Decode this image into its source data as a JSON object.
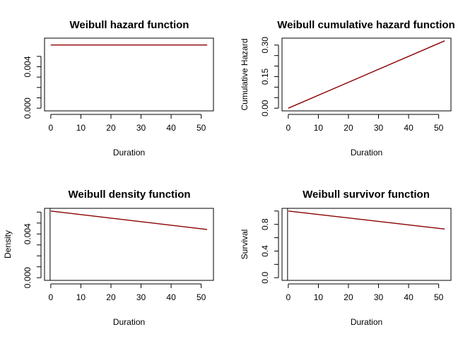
{
  "chart_data": [
    {
      "type": "line",
      "title": "Weibull hazard function",
      "xlabel": "Duration",
      "ylabel": "",
      "xlim": [
        0,
        52
      ],
      "ylim": [
        0,
        0.0065
      ],
      "xticks": [
        "0",
        "10",
        "20",
        "30",
        "40",
        "50"
      ],
      "yticks": [
        "0.000",
        "0.004"
      ],
      "yminor": [
        0.001,
        0.002,
        0.003,
        0.005
      ],
      "vline_at_zero": false,
      "series": [
        {
          "color": "#8B0000",
          "x": [
            0,
            52
          ],
          "y": [
            0.0061,
            0.0061
          ]
        }
      ]
    },
    {
      "type": "line",
      "title": "Weibull cumulative hazard function",
      "xlabel": "Duration",
      "ylabel": "Cumulative Hazard",
      "xlim": [
        0,
        52
      ],
      "ylim": [
        0,
        0.32
      ],
      "xticks": [
        "0",
        "10",
        "20",
        "30",
        "40",
        "50"
      ],
      "yticks": [
        "0.00",
        "0.15",
        "0.30"
      ],
      "yminor": [
        0.05,
        0.1,
        0.2,
        0.25
      ],
      "vline_at_zero": false,
      "series": [
        {
          "color": "#8B0000",
          "x": [
            0,
            52
          ],
          "y": [
            0,
            0.32
          ]
        }
      ]
    },
    {
      "type": "line",
      "title": "Weibull density function",
      "xlabel": "Duration",
      "ylabel": "Density",
      "xlim": [
        0,
        52
      ],
      "ylim": [
        0,
        0.0061
      ],
      "xticks": [
        "0",
        "10",
        "20",
        "30",
        "40",
        "50"
      ],
      "yticks": [
        "0.000",
        "0.004"
      ],
      "yminor": [
        0.001,
        0.002,
        0.003,
        0.005,
        0.006
      ],
      "vline_at_zero": true,
      "series": [
        {
          "color": "#8B0000",
          "x": [
            0,
            52
          ],
          "y": [
            0.0061,
            0.00441
          ]
        }
      ]
    },
    {
      "type": "line",
      "title": "Weibull survivor function",
      "xlabel": "Duration",
      "ylabel": "Survival",
      "xlim": [
        0,
        52
      ],
      "ylim": [
        0,
        1.0
      ],
      "xticks": [
        "0",
        "10",
        "20",
        "30",
        "40",
        "50"
      ],
      "yticks": [
        "0.0",
        "0.4",
        "0.8"
      ],
      "yminor": [
        0.2,
        0.6,
        1.0
      ],
      "vline_at_zero": true,
      "series": [
        {
          "color": "#8B0000",
          "x": [
            0,
            52
          ],
          "y": [
            1.0,
            0.73
          ]
        }
      ]
    }
  ]
}
